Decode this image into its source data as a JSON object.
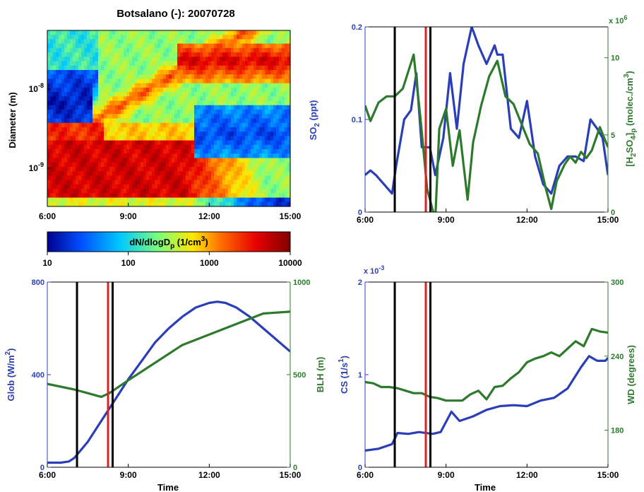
{
  "chart_data": [
    {
      "id": "heatmap",
      "type": "heatmap",
      "title": "Botsalano (-): 20070728",
      "ylabel": "Diameter (m)",
      "x_ticks": [
        "6:00",
        "9:00",
        "12:00",
        "15:00"
      ],
      "y_ticks": [
        "10-9",
        "10-8"
      ],
      "colorbar": {
        "label": "dN/dlogDp (1/cm3)",
        "ticks": [
          "10",
          "100",
          "1000",
          "10000"
        ],
        "colors": [
          "#00008f",
          "#0050ff",
          "#00c8ff",
          "#7dff7a",
          "#ffe600",
          "#ff6a00",
          "#e60000",
          "#800000"
        ]
      }
    },
    {
      "id": "so2",
      "type": "line",
      "x_ticks": [
        "6:00",
        "9:00",
        "12:00",
        "15:00"
      ],
      "xlim": [
        6,
        15
      ],
      "ylabel_left": "SO2 (ppt)",
      "ylabel_right": "[H2SO4]p (molec./cm3)",
      "y_left_ticks": [
        "0",
        "0.1",
        "0.2"
      ],
      "ylim_left": [
        0,
        0.2
      ],
      "y_right_multiplier": "x 10^6",
      "y_right_ticks": [
        "0",
        "5",
        "10"
      ],
      "ylim_right": [
        0,
        12
      ],
      "vlines": [
        {
          "x": 7.1,
          "color": "#000000"
        },
        {
          "x": 8.25,
          "color": "#e02020"
        },
        {
          "x": 8.42,
          "color": "#000000"
        }
      ],
      "series": [
        {
          "axis": "left",
          "color": "#2a3fb7",
          "x": [
            6.0,
            6.2,
            6.4,
            6.7,
            7.0,
            7.15,
            7.45,
            7.7,
            7.9,
            8.1,
            8.4,
            8.6,
            8.9,
            9.15,
            9.4,
            9.65,
            9.95,
            10.2,
            10.5,
            10.8,
            10.9,
            11.1,
            11.4,
            11.7,
            12.0,
            12.3,
            12.6,
            12.9,
            13.2,
            13.5,
            13.8,
            14.1,
            14.35,
            14.6,
            14.8,
            15.0
          ],
          "y": [
            0.04,
            0.045,
            0.04,
            0.03,
            0.02,
            0.05,
            0.1,
            0.11,
            0.15,
            0.07,
            0.07,
            0.04,
            0.08,
            0.15,
            0.09,
            0.16,
            0.2,
            0.18,
            0.16,
            0.18,
            0.17,
            0.17,
            0.09,
            0.08,
            0.12,
            0.06,
            0.03,
            0.02,
            0.05,
            0.06,
            0.06,
            0.055,
            0.1,
            0.09,
            0.08,
            0.04
          ]
        },
        {
          "axis": "right",
          "color": "#2d7a2d",
          "x": [
            6.0,
            6.2,
            6.5,
            6.8,
            7.1,
            7.4,
            7.8,
            8.05,
            8.3,
            8.6,
            8.75,
            9.0,
            9.25,
            9.5,
            9.8,
            10.0,
            10.3,
            10.6,
            10.9,
            11.2,
            11.5,
            11.8,
            12.1,
            12.4,
            12.7,
            12.9,
            13.1,
            13.4,
            13.6,
            13.8,
            14.0,
            14.2,
            14.4,
            14.7,
            15.0
          ],
          "y": [
            6.9,
            5.9,
            7.1,
            7.5,
            7.5,
            8.0,
            10.2,
            6.1,
            1.5,
            -0.5,
            5.4,
            6.7,
            3.0,
            5.3,
            0.8,
            4.5,
            6.9,
            8.8,
            9.8,
            7.5,
            7.0,
            5.7,
            4.4,
            3.8,
            1.5,
            0.2,
            2.0,
            3.1,
            3.6,
            3.2,
            3.9,
            3.5,
            4.0,
            5.5,
            4.2
          ]
        }
      ]
    },
    {
      "id": "glob",
      "type": "line",
      "x_ticks": [
        "6:00",
        "9:00",
        "12:00",
        "15:00"
      ],
      "xlabel": "Time",
      "xlim": [
        6,
        15
      ],
      "ylabel_left": "Glob (W/m2)",
      "ylabel_right": "BLH (m)",
      "y_left_ticks": [
        "0",
        "400",
        "800"
      ],
      "ylim_left": [
        0,
        800
      ],
      "y_right_ticks": [
        "0",
        "500",
        "1000"
      ],
      "ylim_right": [
        0,
        1000
      ],
      "vlines": [
        {
          "x": 7.1,
          "color": "#000000"
        },
        {
          "x": 8.25,
          "color": "#e02020"
        },
        {
          "x": 8.42,
          "color": "#000000"
        }
      ],
      "series": [
        {
          "axis": "left",
          "color": "#2a3fb7",
          "x": [
            6.0,
            6.5,
            6.8,
            7.0,
            7.5,
            8.0,
            8.5,
            9.0,
            9.5,
            10.0,
            10.5,
            11.0,
            11.5,
            12.0,
            12.3,
            12.6,
            13.0,
            13.5,
            14.0,
            14.5,
            15.0
          ],
          "y": [
            20,
            20,
            25,
            40,
            110,
            200,
            290,
            380,
            460,
            540,
            600,
            650,
            690,
            710,
            715,
            710,
            690,
            650,
            600,
            550,
            500
          ]
        },
        {
          "axis": "right",
          "color": "#2d7a2d",
          "x": [
            6.0,
            7.0,
            8.0,
            8.3,
            9.0,
            11.0,
            14.0,
            15.0
          ],
          "y": [
            450,
            420,
            380,
            400,
            470,
            660,
            830,
            840
          ]
        }
      ]
    },
    {
      "id": "cs",
      "type": "line",
      "x_ticks": [
        "6:00",
        "9:00",
        "12:00",
        "15:00"
      ],
      "xlabel": "Time",
      "xlim": [
        6,
        15
      ],
      "ylabel_left": "CS (1/s1)",
      "ylabel_right": "WD (degrees)",
      "y_left_multiplier": "x 10^-3",
      "y_left_ticks": [
        "0",
        "1",
        "2"
      ],
      "ylim_left": [
        0,
        2
      ],
      "y_right_ticks": [
        "180",
        "240",
        "300"
      ],
      "ylim_right": [
        150,
        300
      ],
      "vlines": [
        {
          "x": 7.1,
          "color": "#000000"
        },
        {
          "x": 8.25,
          "color": "#e02020"
        },
        {
          "x": 8.42,
          "color": "#000000"
        }
      ],
      "series": [
        {
          "axis": "left",
          "color": "#2a3fb7",
          "x": [
            6.0,
            6.5,
            7.0,
            7.2,
            7.6,
            8.0,
            8.5,
            8.8,
            9.2,
            9.5,
            10.0,
            10.5,
            11.0,
            11.5,
            12.0,
            12.5,
            13.0,
            13.5,
            14.0,
            14.3,
            14.6,
            14.9,
            15.0
          ],
          "y": [
            0.18,
            0.2,
            0.25,
            0.37,
            0.36,
            0.38,
            0.36,
            0.38,
            0.6,
            0.5,
            0.55,
            0.62,
            0.66,
            0.67,
            0.66,
            0.72,
            0.75,
            0.85,
            1.08,
            1.2,
            1.15,
            1.15,
            1.18
          ]
        },
        {
          "axis": "right",
          "color": "#2d7a2d",
          "x": [
            6.0,
            6.3,
            6.6,
            6.9,
            7.2,
            7.5,
            7.8,
            8.1,
            8.4,
            8.7,
            9.0,
            9.3,
            9.6,
            9.9,
            10.2,
            10.5,
            10.8,
            11.1,
            11.4,
            11.7,
            12.0,
            12.3,
            12.6,
            12.9,
            13.2,
            13.5,
            13.8,
            14.1,
            14.4,
            14.7,
            15.0
          ],
          "y": [
            219,
            218,
            215,
            215,
            214,
            212,
            210,
            210,
            207,
            206,
            204,
            204,
            204,
            209,
            212,
            205,
            215,
            216,
            222,
            227,
            235,
            238,
            240,
            243,
            240,
            246,
            252,
            248,
            262,
            260,
            259
          ]
        }
      ]
    }
  ]
}
